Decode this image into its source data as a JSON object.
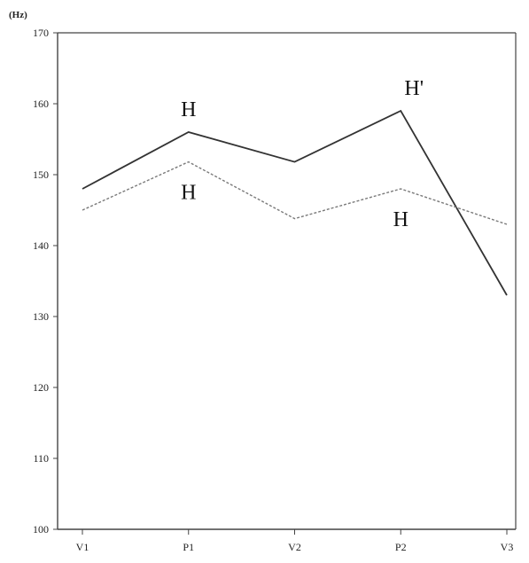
{
  "chart_data": {
    "type": "line",
    "unit_label": "(Hz)",
    "categories": [
      "V1",
      "P1",
      "V2",
      "P2",
      "V3"
    ],
    "ylim": [
      100,
      170
    ],
    "y_ticks": [
      100,
      110,
      120,
      130,
      140,
      150,
      160,
      170
    ],
    "grid": false,
    "series": [
      {
        "values": [
          148,
          156,
          151.8,
          159,
          133
        ],
        "style": "solid",
        "color": "#333333"
      },
      {
        "values": [
          145,
          151.8,
          143.8,
          148,
          143
        ],
        "style": "dashed",
        "color": "#7a7a7a"
      }
    ],
    "annotations": [
      {
        "text": "H",
        "series": 0,
        "category": "P1",
        "position": "above"
      },
      {
        "text": "H'",
        "series": 0,
        "category": "P2",
        "position": "above"
      },
      {
        "text": "H",
        "series": 1,
        "category": "P1",
        "position": "below"
      },
      {
        "text": "H",
        "series": 1,
        "category": "P2",
        "position": "below"
      }
    ]
  }
}
